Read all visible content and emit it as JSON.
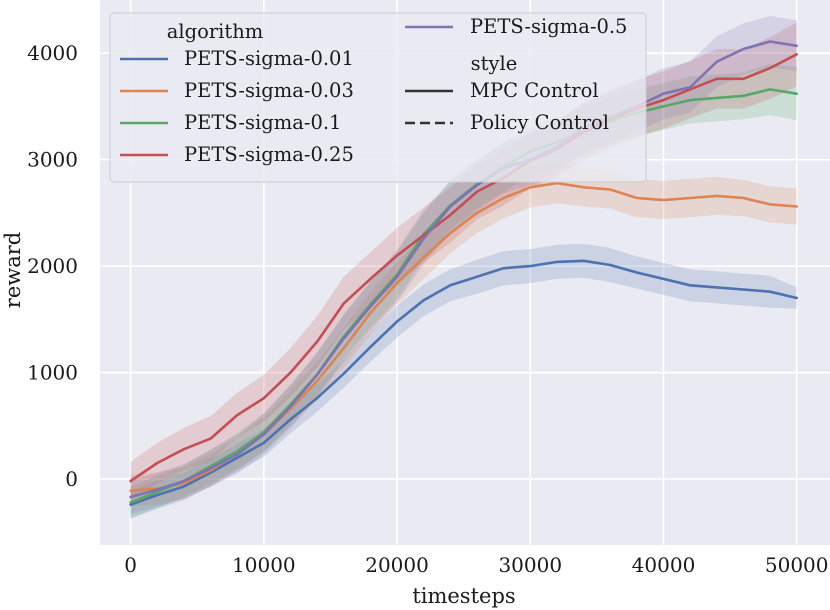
{
  "chart_data": {
    "type": "line",
    "xlabel": "timesteps",
    "ylabel": "reward",
    "xlim": [
      -2300,
      52500
    ],
    "ylim": [
      -620,
      4500
    ],
    "xticks": [
      0,
      10000,
      20000,
      30000,
      40000,
      50000
    ],
    "xtick_labels": [
      "0",
      "10000",
      "20000",
      "30000",
      "40000",
      "50000"
    ],
    "yticks": [
      0,
      1000,
      2000,
      3000,
      4000
    ],
    "ytick_labels": [
      "0",
      "1000",
      "2000",
      "3000",
      "4000"
    ],
    "grid": true,
    "legend_position": "top-left",
    "legend": {
      "hue_title": "algorithm",
      "style_title": "style",
      "styles": [
        {
          "name": "MPC Control",
          "dash": "solid"
        },
        {
          "name": "Policy Control",
          "dash": "dashed"
        }
      ]
    },
    "series": [
      {
        "name": "PETS-sigma-0.01",
        "color": "#4c72b0",
        "style": "MPC Control",
        "x": [
          0,
          2000,
          4000,
          6000,
          8000,
          10000,
          12000,
          14000,
          16000,
          18000,
          20000,
          22000,
          24000,
          26000,
          28000,
          30000,
          32000,
          34000,
          36000,
          38000,
          40000,
          42000,
          44000,
          46000,
          48000,
          50000
        ],
        "y": [
          -240,
          -150,
          -70,
          60,
          200,
          340,
          560,
          760,
          990,
          1240,
          1480,
          1680,
          1820,
          1900,
          1980,
          2000,
          2040,
          2050,
          2010,
          1940,
          1880,
          1820,
          1800,
          1780,
          1760,
          1700
        ],
        "band": [
          130,
          130,
          130,
          130,
          130,
          130,
          130,
          130,
          130,
          140,
          150,
          150,
          150,
          160,
          160,
          160,
          160,
          160,
          160,
          150,
          150,
          150,
          150,
          150,
          150,
          100
        ]
      },
      {
        "name": "PETS-sigma-0.03",
        "color": "#dd8452",
        "style": "MPC Control",
        "x": [
          0,
          2000,
          4000,
          6000,
          8000,
          10000,
          12000,
          14000,
          16000,
          18000,
          20000,
          22000,
          24000,
          26000,
          28000,
          30000,
          32000,
          34000,
          36000,
          38000,
          40000,
          42000,
          44000,
          46000,
          48000,
          50000
        ],
        "y": [
          -110,
          -90,
          -40,
          80,
          240,
          420,
          660,
          920,
          1230,
          1560,
          1840,
          2080,
          2310,
          2500,
          2640,
          2740,
          2780,
          2740,
          2720,
          2640,
          2620,
          2640,
          2660,
          2640,
          2580,
          2560
        ],
        "band": [
          150,
          150,
          150,
          150,
          150,
          160,
          170,
          180,
          190,
          200,
          200,
          200,
          190,
          190,
          190,
          190,
          190,
          180,
          180,
          180,
          180,
          180,
          180,
          170,
          170,
          170
        ]
      },
      {
        "name": "PETS-sigma-0.1",
        "color": "#55a868",
        "style": "MPC Control",
        "x": [
          0,
          2000,
          4000,
          6000,
          8000,
          10000,
          12000,
          14000,
          16000,
          18000,
          20000,
          22000,
          24000,
          26000,
          28000,
          30000,
          32000,
          34000,
          36000,
          38000,
          40000,
          42000,
          44000,
          46000,
          48000,
          50000
        ],
        "y": [
          -220,
          -120,
          -20,
          120,
          260,
          440,
          700,
          980,
          1340,
          1640,
          1920,
          2300,
          2570,
          2770,
          2930,
          3080,
          3160,
          3260,
          3360,
          3440,
          3500,
          3560,
          3580,
          3600,
          3660,
          3620
        ],
        "band": [
          150,
          150,
          150,
          160,
          170,
          180,
          190,
          200,
          210,
          220,
          230,
          230,
          230,
          230,
          230,
          230,
          230,
          230,
          230,
          220,
          220,
          220,
          220,
          220,
          240,
          250
        ]
      },
      {
        "name": "PETS-sigma-0.25",
        "color": "#c44e52",
        "style": "MPC Control",
        "x": [
          0,
          2000,
          4000,
          6000,
          8000,
          10000,
          12000,
          14000,
          16000,
          18000,
          20000,
          22000,
          24000,
          26000,
          28000,
          30000,
          32000,
          34000,
          36000,
          38000,
          40000,
          42000,
          44000,
          46000,
          48000,
          50000
        ],
        "y": [
          -20,
          150,
          280,
          380,
          600,
          760,
          1000,
          1290,
          1650,
          1880,
          2100,
          2290,
          2480,
          2700,
          2830,
          2990,
          3100,
          3260,
          3380,
          3480,
          3560,
          3660,
          3760,
          3760,
          3860,
          3990
        ],
        "band": [
          180,
          190,
          200,
          210,
          210,
          220,
          230,
          240,
          250,
          250,
          260,
          260,
          260,
          260,
          260,
          260,
          260,
          270,
          270,
          270,
          270,
          270,
          280,
          280,
          290,
          300
        ]
      },
      {
        "name": "PETS-sigma-0.5",
        "color": "#8172b3",
        "style": "MPC Control",
        "x": [
          0,
          2000,
          4000,
          6000,
          8000,
          10000,
          12000,
          14000,
          16000,
          18000,
          20000,
          22000,
          24000,
          26000,
          28000,
          30000,
          32000,
          34000,
          36000,
          38000,
          40000,
          42000,
          44000,
          46000,
          48000,
          50000
        ],
        "y": [
          -170,
          -100,
          -20,
          100,
          230,
          420,
          680,
          980,
          1320,
          1620,
          1900,
          2260,
          2560,
          2760,
          2920,
          3000,
          3120,
          3300,
          3400,
          3500,
          3620,
          3680,
          3920,
          4040,
          4110,
          4070
        ],
        "band": [
          160,
          160,
          160,
          170,
          180,
          190,
          200,
          210,
          220,
          230,
          240,
          240,
          240,
          240,
          240,
          240,
          240,
          240,
          240,
          240,
          240,
          240,
          240,
          240,
          240,
          240
        ]
      }
    ]
  }
}
